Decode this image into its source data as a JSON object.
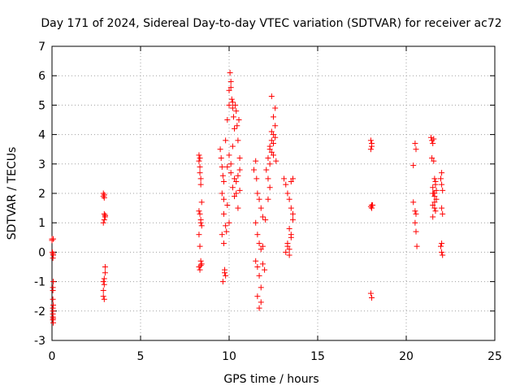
{
  "chart_data": {
    "type": "scatter",
    "title": "Day 171 of 2024, Sidereal Day-to-day VTEC variation (SDTVAR) for receiver ac72",
    "xlabel": "GPS time / hours",
    "ylabel": "SDTVAR / TECUs",
    "xlim": [
      0,
      25
    ],
    "ylim": [
      -3,
      7
    ],
    "xticks": [
      "0",
      "5",
      "10",
      "15",
      "20",
      "25"
    ],
    "xtick_values": [
      0,
      5,
      10,
      15,
      20,
      25
    ],
    "yticks": [
      "-3",
      "-2",
      "-1",
      "0",
      "1",
      "2",
      "3",
      "4",
      "5",
      "6",
      "7"
    ],
    "ytick_values": [
      -3,
      -2,
      -1,
      0,
      1,
      2,
      3,
      4,
      5,
      6,
      7
    ],
    "grid": true,
    "marker": "+",
    "color": "#ff0000",
    "series": [
      {
        "name": "SDTVAR",
        "x": [
          0.0,
          0.0,
          0.02,
          0.05,
          0.05,
          0.05,
          0.05,
          0.05,
          0.05,
          0.05,
          0.05,
          0.05,
          0.05,
          0.07,
          0.07,
          0.07,
          0.07,
          0.07,
          0.07,
          2.9,
          2.9,
          2.95,
          2.95,
          2.95,
          3.0,
          3.0,
          2.9,
          2.95,
          3.0,
          2.9,
          2.9,
          2.95,
          2.95,
          3.0,
          3.0,
          2.9,
          2.95,
          8.3,
          8.3,
          8.35,
          8.35,
          8.35,
          8.4,
          8.4,
          8.45,
          8.3,
          8.35,
          8.4,
          8.4,
          8.45,
          8.3,
          8.35,
          8.4,
          8.45,
          8.3,
          8.35,
          8.4,
          9.5,
          9.55,
          9.6,
          9.65,
          9.7,
          9.6,
          9.7,
          9.8,
          9.9,
          10.0,
          10.0,
          10.05,
          10.1,
          10.1,
          10.15,
          10.2,
          10.2,
          10.25,
          10.3,
          10.35,
          10.4,
          10.45,
          10.5,
          10.55,
          10.6,
          10.6,
          9.6,
          9.7,
          9.75,
          9.8,
          9.9,
          10.0,
          10.1,
          10.2,
          10.3,
          10.4,
          10.5,
          10.6,
          9.7,
          9.8,
          9.9,
          10.0,
          10.1,
          10.2,
          10.3,
          10.4,
          10.5,
          9.65,
          9.75,
          9.85,
          11.4,
          11.5,
          11.55,
          11.6,
          11.7,
          11.8,
          11.9,
          11.5,
          11.6,
          11.7,
          11.8,
          11.5,
          11.6,
          11.7,
          11.8,
          11.9,
          11.6,
          11.7,
          11.8,
          11.9,
          12.0,
          12.05,
          12.1,
          12.2,
          12.3,
          12.4,
          12.5,
          12.6,
          12.2,
          12.3,
          12.4,
          12.5,
          12.6,
          12.3,
          12.4,
          12.5,
          12.6,
          12.4,
          12.5,
          12.65,
          12.2,
          12.3,
          13.1,
          13.2,
          13.3,
          13.4,
          13.5,
          13.6,
          13.3,
          13.4,
          13.5,
          13.6,
          13.4,
          13.5,
          13.6,
          13.2,
          13.3,
          13.4,
          13.5,
          18.0,
          18.0,
          18.05,
          18.05,
          18.05,
          18.0,
          18.05,
          18.1,
          18.0,
          18.05,
          20.4,
          20.4,
          20.5,
          20.55,
          20.55,
          20.5,
          20.6,
          20.5,
          20.55,
          21.4,
          21.45,
          21.5,
          21.55,
          21.6,
          21.65,
          21.7,
          21.5,
          21.6,
          21.7,
          21.5,
          21.6,
          21.5,
          21.55,
          21.6,
          21.65,
          21.45,
          21.55,
          21.65,
          21.5,
          21.6,
          21.95,
          22.0,
          22.05,
          22.0,
          22.05,
          22.0,
          21.95,
          22.0,
          22.05,
          22.0
        ],
        "y": [
          0.45,
          0.4,
          0.0,
          -0.05,
          -0.2,
          -1.2,
          -1.3,
          -1.9,
          -2.0,
          -2.1,
          -2.2,
          -2.3,
          -1.6,
          -1.0,
          -2.4,
          -0.1,
          0.45,
          -1.8,
          -2.25,
          2.0,
          1.9,
          1.85,
          1.95,
          1.3,
          1.25,
          1.2,
          1.0,
          1.1,
          1.25,
          -1.0,
          -1.3,
          -1.1,
          -0.9,
          -0.7,
          -0.5,
          -1.5,
          -1.6,
          3.3,
          3.1,
          3.2,
          2.9,
          2.7,
          2.5,
          2.3,
          1.7,
          1.4,
          1.3,
          1.1,
          1.0,
          0.9,
          0.6,
          0.2,
          -0.3,
          -0.4,
          -0.5,
          -0.6,
          -0.45,
          3.5,
          3.2,
          2.9,
          2.6,
          2.4,
          2.0,
          1.8,
          3.8,
          4.5,
          5.0,
          5.5,
          6.1,
          5.8,
          5.6,
          5.2,
          4.9,
          5.1,
          4.6,
          4.2,
          5.0,
          4.8,
          4.3,
          3.8,
          4.5,
          3.2,
          2.8,
          0.6,
          0.3,
          -0.6,
          -0.8,
          2.9,
          3.3,
          2.7,
          2.2,
          1.9,
          2.4,
          2.6,
          2.1,
          1.3,
          0.9,
          1.6,
          1.0,
          3.0,
          3.6,
          2.5,
          2.0,
          1.5,
          -1.0,
          -0.7,
          0.7,
          2.8,
          3.1,
          2.5,
          2.0,
          1.8,
          1.5,
          1.2,
          1.0,
          0.6,
          0.3,
          0.1,
          -0.3,
          -0.5,
          -0.8,
          -1.2,
          -0.4,
          -1.5,
          -1.9,
          -1.7,
          0.2,
          -0.6,
          1.1,
          2.8,
          3.2,
          3.5,
          3.8,
          4.0,
          4.3,
          2.5,
          3.0,
          3.4,
          3.7,
          3.9,
          3.6,
          4.1,
          4.6,
          4.9,
          5.3,
          3.3,
          3.1,
          1.8,
          2.2,
          2.5,
          2.3,
          2.0,
          1.8,
          2.4,
          2.5,
          0.3,
          0.1,
          0.5,
          1.1,
          0.8,
          1.5,
          1.3,
          0.0,
          0.2,
          -0.1,
          0.6,
          3.8,
          3.5,
          3.6,
          3.7,
          1.6,
          1.55,
          1.5,
          1.6,
          -1.4,
          -1.55,
          2.95,
          1.7,
          1.4,
          1.3,
          3.5,
          3.7,
          0.2,
          1.0,
          0.7,
          3.9,
          3.8,
          3.7,
          3.85,
          2.5,
          2.3,
          2.1,
          2.0,
          1.9,
          1.8,
          1.6,
          1.7,
          2.2,
          2.0,
          1.5,
          2.4,
          3.2,
          3.1,
          1.4,
          1.2,
          2.0,
          2.5,
          2.3,
          2.1,
          1.5,
          1.3,
          0.3,
          0.2,
          0.0,
          -0.1,
          2.7
        ]
      }
    ]
  }
}
